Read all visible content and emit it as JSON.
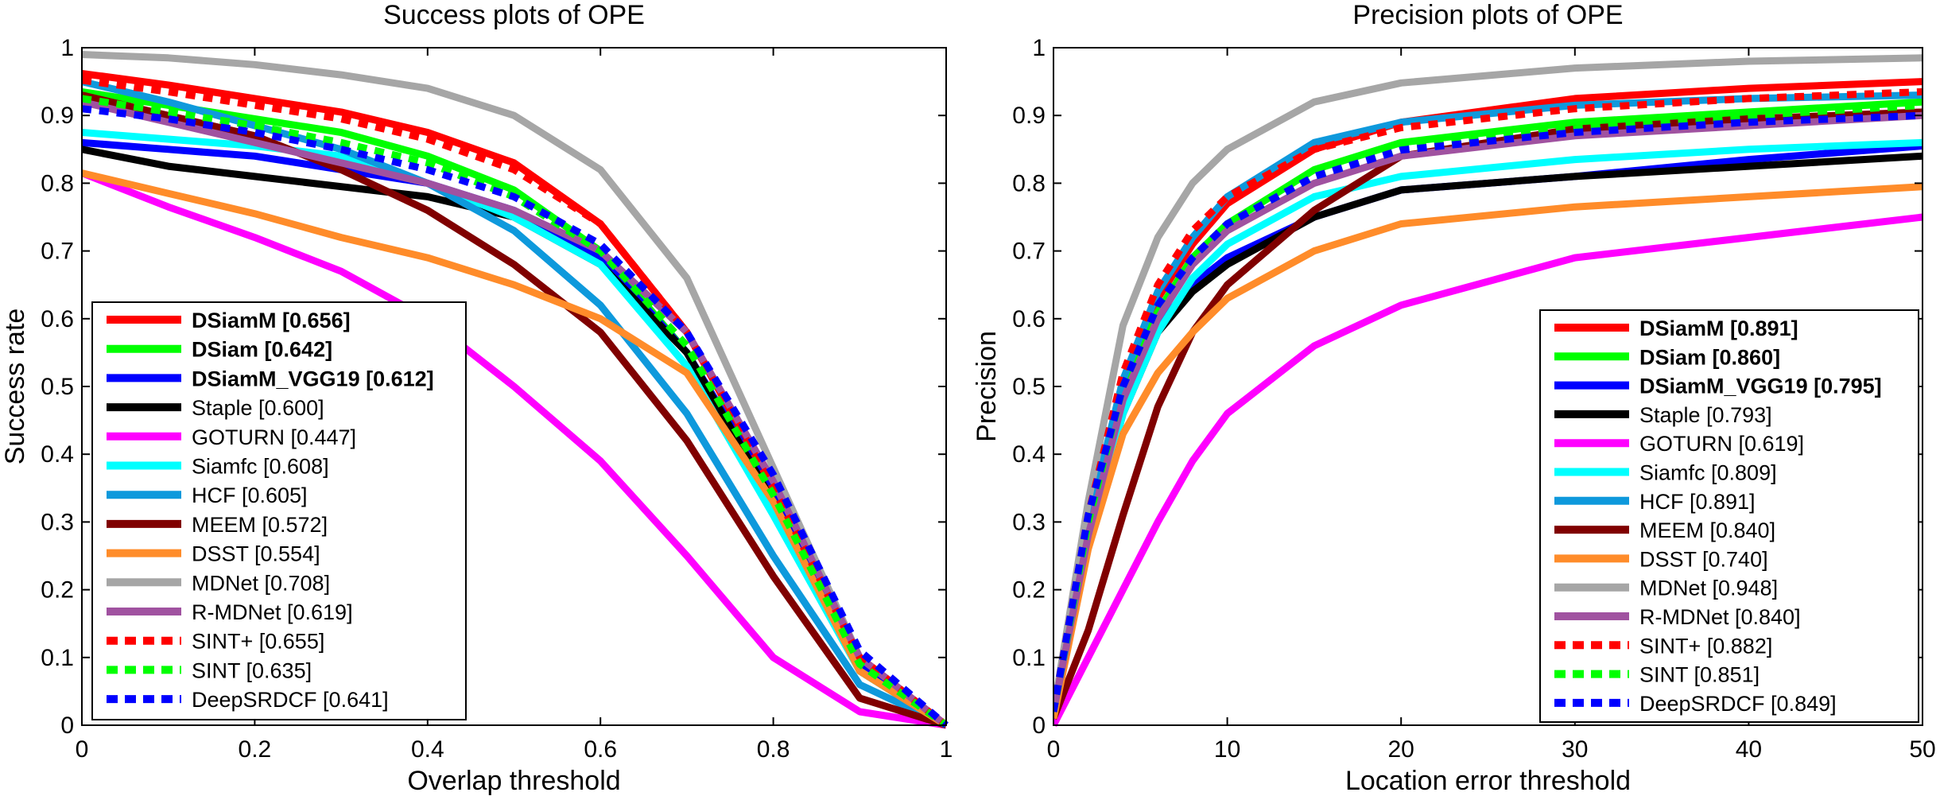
{
  "chart_data": [
    {
      "type": "line",
      "title": "Success plots of OPE",
      "xlabel": "Overlap threshold",
      "ylabel": "Success rate",
      "xlim": [
        0,
        1
      ],
      "ylim": [
        0,
        1
      ],
      "xticks": [
        "0",
        "0.2",
        "0.4",
        "0.6",
        "0.8",
        "1"
      ],
      "yticks": [
        "0",
        "0.1",
        "0.2",
        "0.3",
        "0.4",
        "0.5",
        "0.6",
        "0.7",
        "0.8",
        "0.9",
        "1"
      ],
      "grid": false,
      "legend_position": "bottom-left",
      "x": [
        0,
        0.1,
        0.2,
        0.3,
        0.4,
        0.5,
        0.6,
        0.7,
        0.8,
        0.9,
        1.0
      ],
      "series": [
        {
          "name": "DSiamM",
          "score": "[0.656]",
          "bold": true,
          "color": "#ff0000",
          "dash": false,
          "values": [
            0.962,
            0.945,
            0.925,
            0.905,
            0.875,
            0.83,
            0.74,
            0.58,
            0.35,
            0.1,
            0.0
          ]
        },
        {
          "name": "DSiam",
          "score": "[0.642]",
          "bold": true,
          "color": "#00ff00",
          "dash": false,
          "values": [
            0.935,
            0.915,
            0.895,
            0.875,
            0.84,
            0.79,
            0.7,
            0.55,
            0.33,
            0.08,
            0.0
          ]
        },
        {
          "name": "DSiamM_VGG19",
          "score": "[0.612]",
          "bold": true,
          "color": "#0000ff",
          "dash": false,
          "values": [
            0.86,
            0.85,
            0.84,
            0.82,
            0.8,
            0.76,
            0.69,
            0.55,
            0.34,
            0.09,
            0.0
          ]
        },
        {
          "name": "Staple",
          "score": "[0.600]",
          "bold": false,
          "color": "#000000",
          "dash": false,
          "values": [
            0.85,
            0.825,
            0.81,
            0.795,
            0.78,
            0.75,
            0.68,
            0.55,
            0.33,
            0.08,
            0.0
          ]
        },
        {
          "name": "GOTURN",
          "score": "[0.447]",
          "bold": false,
          "color": "#ff00ff",
          "dash": false,
          "values": [
            0.815,
            0.765,
            0.72,
            0.67,
            0.6,
            0.5,
            0.39,
            0.25,
            0.1,
            0.02,
            0.0
          ]
        },
        {
          "name": "Siamfc",
          "score": "[0.608]",
          "bold": false,
          "color": "#00ffff",
          "dash": false,
          "values": [
            0.875,
            0.865,
            0.855,
            0.84,
            0.8,
            0.75,
            0.68,
            0.53,
            0.31,
            0.08,
            0.0
          ]
        },
        {
          "name": "HCF",
          "score": "[0.605]",
          "bold": false,
          "color": "#0e99dc",
          "dash": false,
          "values": [
            0.95,
            0.92,
            0.885,
            0.85,
            0.8,
            0.73,
            0.62,
            0.46,
            0.25,
            0.06,
            0.0
          ]
        },
        {
          "name": "MEEM",
          "score": "[0.572]",
          "bold": false,
          "color": "#800000",
          "dash": false,
          "values": [
            0.93,
            0.9,
            0.87,
            0.82,
            0.76,
            0.68,
            0.58,
            0.42,
            0.22,
            0.04,
            0.0
          ]
        },
        {
          "name": "DSST",
          "score": "[0.554]",
          "bold": false,
          "color": "#ff8c2a",
          "dash": false,
          "values": [
            0.815,
            0.785,
            0.755,
            0.72,
            0.69,
            0.65,
            0.6,
            0.52,
            0.33,
            0.08,
            0.0
          ]
        },
        {
          "name": "MDNet",
          "score": "[0.708]",
          "bold": false,
          "color": "#a6a6a6",
          "dash": false,
          "values": [
            0.99,
            0.985,
            0.975,
            0.96,
            0.94,
            0.9,
            0.82,
            0.66,
            0.38,
            0.1,
            0.0
          ]
        },
        {
          "name": "R-MDNet",
          "score": "[0.619]",
          "bold": false,
          "color": "#a052a0",
          "dash": false,
          "values": [
            0.92,
            0.89,
            0.86,
            0.83,
            0.8,
            0.76,
            0.7,
            0.58,
            0.36,
            0.1,
            0.0
          ]
        },
        {
          "name": "SINT+",
          "score": "[0.655]",
          "bold": false,
          "color": "#ff0000",
          "dash": true,
          "values": [
            0.952,
            0.935,
            0.915,
            0.895,
            0.865,
            0.82,
            0.74,
            0.58,
            0.35,
            0.1,
            0.0
          ]
        },
        {
          "name": "SINT",
          "score": "[0.635]",
          "bold": false,
          "color": "#00ff00",
          "dash": true,
          "values": [
            0.925,
            0.905,
            0.885,
            0.86,
            0.83,
            0.78,
            0.7,
            0.56,
            0.34,
            0.09,
            0.0
          ]
        },
        {
          "name": "DeepSRDCF",
          "score": "[0.641]",
          "bold": false,
          "color": "#0000ff",
          "dash": true,
          "values": [
            0.91,
            0.895,
            0.875,
            0.85,
            0.82,
            0.78,
            0.71,
            0.58,
            0.37,
            0.11,
            0.0
          ]
        }
      ]
    },
    {
      "type": "line",
      "title": "Precision plots of OPE",
      "xlabel": "Location error threshold",
      "ylabel": "Precision",
      "xlim": [
        0,
        50
      ],
      "ylim": [
        0,
        1
      ],
      "xticks": [
        "0",
        "10",
        "20",
        "30",
        "40",
        "50"
      ],
      "yticks": [
        "0",
        "0.1",
        "0.2",
        "0.3",
        "0.4",
        "0.5",
        "0.6",
        "0.7",
        "0.8",
        "0.9",
        "1"
      ],
      "grid": false,
      "legend_position": "bottom-right",
      "x": [
        0,
        2,
        4,
        6,
        8,
        10,
        15,
        20,
        30,
        40,
        50
      ],
      "series": [
        {
          "name": "DSiamM",
          "score": "[0.891]",
          "bold": true,
          "color": "#ff0000",
          "dash": false,
          "values": [
            0.02,
            0.3,
            0.5,
            0.63,
            0.71,
            0.77,
            0.85,
            0.89,
            0.925,
            0.94,
            0.95
          ]
        },
        {
          "name": "DSiam",
          "score": "[0.860]",
          "bold": true,
          "color": "#00ff00",
          "dash": false,
          "values": [
            0.02,
            0.3,
            0.5,
            0.61,
            0.69,
            0.74,
            0.82,
            0.86,
            0.89,
            0.905,
            0.92
          ]
        },
        {
          "name": "DSiamM_VGG19",
          "score": "[0.795]",
          "bold": true,
          "color": "#0000ff",
          "dash": false,
          "values": [
            0.01,
            0.28,
            0.47,
            0.59,
            0.65,
            0.69,
            0.75,
            0.79,
            0.81,
            0.835,
            0.855
          ]
        },
        {
          "name": "Staple",
          "score": "[0.793]",
          "bold": false,
          "color": "#000000",
          "dash": false,
          "values": [
            0.01,
            0.27,
            0.46,
            0.58,
            0.64,
            0.68,
            0.75,
            0.79,
            0.81,
            0.825,
            0.84
          ]
        },
        {
          "name": "GOTURN",
          "score": "[0.619]",
          "bold": false,
          "color": "#ff00ff",
          "dash": false,
          "values": [
            0.0,
            0.1,
            0.2,
            0.3,
            0.39,
            0.46,
            0.56,
            0.62,
            0.69,
            0.72,
            0.75
          ]
        },
        {
          "name": "Siamfc",
          "score": "[0.809]",
          "bold": false,
          "color": "#00ffff",
          "dash": false,
          "values": [
            0.02,
            0.27,
            0.46,
            0.58,
            0.66,
            0.71,
            0.78,
            0.81,
            0.835,
            0.85,
            0.86
          ]
        },
        {
          "name": "HCF",
          "score": "[0.891]",
          "bold": false,
          "color": "#0e99dc",
          "dash": false,
          "values": [
            0.02,
            0.3,
            0.51,
            0.64,
            0.72,
            0.78,
            0.86,
            0.89,
            0.915,
            0.925,
            0.93
          ]
        },
        {
          "name": "MEEM",
          "score": "[0.840]",
          "bold": false,
          "color": "#800000",
          "dash": false,
          "values": [
            0.01,
            0.14,
            0.31,
            0.47,
            0.58,
            0.65,
            0.76,
            0.84,
            0.88,
            0.895,
            0.905
          ]
        },
        {
          "name": "DSST",
          "score": "[0.740]",
          "bold": false,
          "color": "#ff8c2a",
          "dash": false,
          "values": [
            0.01,
            0.26,
            0.43,
            0.52,
            0.58,
            0.63,
            0.7,
            0.74,
            0.765,
            0.78,
            0.795
          ]
        },
        {
          "name": "MDNet",
          "score": "[0.948]",
          "bold": false,
          "color": "#a6a6a6",
          "dash": false,
          "values": [
            0.02,
            0.33,
            0.59,
            0.72,
            0.8,
            0.85,
            0.92,
            0.948,
            0.97,
            0.98,
            0.985
          ]
        },
        {
          "name": "R-MDNet",
          "score": "[0.840]",
          "bold": false,
          "color": "#a052a0",
          "dash": false,
          "values": [
            0.02,
            0.28,
            0.48,
            0.6,
            0.68,
            0.73,
            0.8,
            0.84,
            0.87,
            0.885,
            0.9
          ]
        },
        {
          "name": "SINT+",
          "score": "[0.882]",
          "bold": false,
          "color": "#ff0000",
          "dash": true,
          "values": [
            0.02,
            0.31,
            0.52,
            0.65,
            0.73,
            0.78,
            0.85,
            0.882,
            0.91,
            0.925,
            0.935
          ]
        },
        {
          "name": "SINT",
          "score": "[0.851]",
          "bold": false,
          "color": "#00ff00",
          "dash": true,
          "values": [
            0.02,
            0.3,
            0.5,
            0.62,
            0.69,
            0.74,
            0.81,
            0.851,
            0.88,
            0.9,
            0.915
          ]
        },
        {
          "name": "DeepSRDCF",
          "score": "[0.849]",
          "bold": false,
          "color": "#0000ff",
          "dash": true,
          "values": [
            0.02,
            0.31,
            0.5,
            0.62,
            0.69,
            0.74,
            0.81,
            0.849,
            0.875,
            0.89,
            0.9
          ]
        }
      ]
    }
  ]
}
